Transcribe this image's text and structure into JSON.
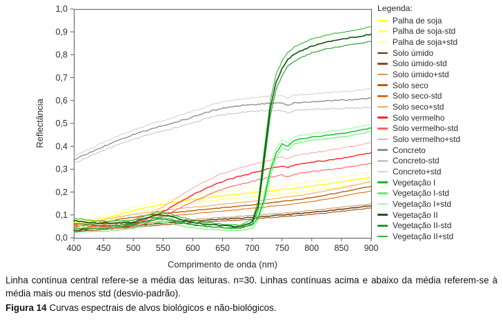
{
  "chart_data": {
    "type": "line",
    "title": "",
    "xlabel": "Comprimento de onda (nm)",
    "ylabel": "Reflectância",
    "legend_title": "Legenda:",
    "legend_position": "right",
    "grid": false,
    "xlim": [
      400,
      900
    ],
    "ylim": [
      0,
      1
    ],
    "x_ticks": [
      400,
      450,
      500,
      550,
      600,
      650,
      700,
      750,
      800,
      850,
      900
    ],
    "y_tick_labels": [
      "0,0",
      "0,1",
      "0,2",
      "0,3",
      "0,4",
      "0,5",
      "0,6",
      "0,7",
      "0,8",
      "0,9",
      "1,0"
    ],
    "axis_color": "#595959",
    "x": [
      400,
      420,
      440,
      460,
      480,
      500,
      520,
      540,
      560,
      580,
      600,
      620,
      640,
      660,
      680,
      700,
      710,
      720,
      730,
      740,
      750,
      760,
      770,
      780,
      800,
      820,
      840,
      860,
      880,
      900
    ],
    "groups": [
      {
        "id": "palha-de-soja",
        "name": "Palha de soja",
        "legend_labels": [
          "Palha de soja",
          "Palha de soja-std",
          "Palha de soja+std"
        ],
        "color_mean": "#ffff00",
        "color_minus": "#ffff70",
        "color_plus": "#ffffa8",
        "mean": [
          0.065,
          0.071,
          0.079,
          0.09,
          0.104,
          0.119,
          0.132,
          0.142,
          0.151,
          0.159,
          0.167,
          0.174,
          0.181,
          0.187,
          0.192,
          0.197,
          0.2,
          0.203,
          0.205,
          0.208,
          0.211,
          0.213,
          0.216,
          0.219,
          0.226,
          0.233,
          0.241,
          0.249,
          0.257,
          0.265
        ],
        "std": [
          0.012,
          0.012,
          0.013,
          0.013,
          0.014,
          0.014,
          0.015,
          0.015,
          0.015,
          0.016,
          0.016,
          0.016,
          0.017,
          0.017,
          0.017,
          0.018,
          0.018,
          0.018,
          0.018,
          0.019,
          0.019,
          0.019,
          0.019,
          0.02,
          0.02,
          0.02,
          0.021,
          0.021,
          0.022,
          0.022
        ]
      },
      {
        "id": "solo-umido",
        "name": "Solo úmido",
        "legend_labels": [
          "Solo úmido",
          "Solo úmido-std",
          "Solo úmido+std"
        ],
        "color_mean": "#5e2c04",
        "color_minus": "#974706",
        "color_plus": "#c89b64",
        "mean": [
          0.032,
          0.036,
          0.04,
          0.044,
          0.049,
          0.053,
          0.058,
          0.062,
          0.066,
          0.07,
          0.073,
          0.077,
          0.08,
          0.083,
          0.086,
          0.09,
          0.092,
          0.094,
          0.096,
          0.098,
          0.1,
          0.102,
          0.104,
          0.106,
          0.111,
          0.116,
          0.122,
          0.128,
          0.134,
          0.14
        ],
        "std": [
          0.006,
          0.006,
          0.006,
          0.006,
          0.007,
          0.007,
          0.007,
          0.007,
          0.007,
          0.007,
          0.007,
          0.007,
          0.008,
          0.008,
          0.008,
          0.008,
          0.008,
          0.008,
          0.008,
          0.008,
          0.008,
          0.008,
          0.008,
          0.008,
          0.009,
          0.009,
          0.009,
          0.009,
          0.009,
          0.009
        ]
      },
      {
        "id": "solo-seco",
        "name": "Solo seco",
        "legend_labels": [
          "Solo seco",
          "Solo seco-std",
          "Solo seco+std"
        ],
        "color_mean": "#b45f06",
        "color_minus": "#e36c09",
        "color_plus": "#f9a65b",
        "mean": [
          0.048,
          0.055,
          0.063,
          0.072,
          0.082,
          0.09,
          0.097,
          0.103,
          0.109,
          0.114,
          0.119,
          0.124,
          0.129,
          0.134,
          0.139,
          0.144,
          0.147,
          0.15,
          0.153,
          0.156,
          0.159,
          0.162,
          0.165,
          0.168,
          0.176,
          0.185,
          0.195,
          0.205,
          0.215,
          0.225
        ],
        "std": [
          0.01,
          0.01,
          0.011,
          0.011,
          0.012,
          0.012,
          0.013,
          0.013,
          0.013,
          0.014,
          0.014,
          0.014,
          0.015,
          0.015,
          0.015,
          0.015,
          0.016,
          0.016,
          0.016,
          0.016,
          0.017,
          0.017,
          0.017,
          0.017,
          0.018,
          0.018,
          0.019,
          0.019,
          0.02,
          0.02
        ]
      },
      {
        "id": "solo-vermelho",
        "name": "Solo vermelho",
        "legend_labels": [
          "Solo vermelho",
          "Solo vermelho-std",
          "Solo vermelho+std"
        ],
        "color_mean": "#ff1f1f",
        "color_minus": "#ff6060",
        "color_plus": "#ffa8a8",
        "mean": [
          0.055,
          0.052,
          0.051,
          0.052,
          0.056,
          0.064,
          0.078,
          0.1,
          0.128,
          0.158,
          0.188,
          0.214,
          0.237,
          0.255,
          0.27,
          0.284,
          0.291,
          0.297,
          0.303,
          0.309,
          0.314,
          0.306,
          0.318,
          0.322,
          0.33,
          0.337,
          0.344,
          0.352,
          0.362,
          0.372
        ],
        "std": [
          0.01,
          0.01,
          0.01,
          0.011,
          0.012,
          0.013,
          0.016,
          0.019,
          0.023,
          0.027,
          0.03,
          0.032,
          0.034,
          0.035,
          0.036,
          0.037,
          0.037,
          0.038,
          0.038,
          0.039,
          0.039,
          0.039,
          0.04,
          0.04,
          0.041,
          0.042,
          0.043,
          0.044,
          0.045,
          0.046
        ]
      },
      {
        "id": "concreto",
        "name": "Concreto",
        "legend_labels": [
          "Concreto",
          "Concreto-std",
          "Concreto+std"
        ],
        "color_mean": "#8f8f8f",
        "color_minus": "#c6c6c6",
        "color_plus": "#d3d3d3",
        "mean": [
          0.34,
          0.364,
          0.388,
          0.41,
          0.431,
          0.45,
          0.467,
          0.483,
          0.497,
          0.512,
          0.528,
          0.545,
          0.56,
          0.57,
          0.577,
          0.582,
          0.584,
          0.586,
          0.587,
          0.588,
          0.589,
          0.576,
          0.591,
          0.592,
          0.595,
          0.598,
          0.601,
          0.603,
          0.606,
          0.61
        ],
        "std": [
          0.015,
          0.016,
          0.017,
          0.018,
          0.019,
          0.02,
          0.021,
          0.022,
          0.023,
          0.024,
          0.025,
          0.026,
          0.027,
          0.028,
          0.029,
          0.03,
          0.03,
          0.031,
          0.031,
          0.032,
          0.032,
          0.032,
          0.033,
          0.033,
          0.034,
          0.035,
          0.036,
          0.037,
          0.038,
          0.04
        ]
      },
      {
        "id": "vegetacao-1",
        "name": "Vegetação I",
        "legend_labels": [
          "Vegetação I",
          "Vegetação I-std",
          "Vegetação I+std"
        ],
        "color_mean": "#00bd22",
        "color_minus": "#66ef66",
        "color_plus": "#a4f7a4",
        "mean": [
          0.038,
          0.039,
          0.041,
          0.044,
          0.049,
          0.056,
          0.07,
          0.082,
          0.079,
          0.066,
          0.056,
          0.05,
          0.046,
          0.043,
          0.044,
          0.055,
          0.09,
          0.17,
          0.29,
          0.37,
          0.41,
          0.4,
          0.425,
          0.432,
          0.44,
          0.447,
          0.453,
          0.46,
          0.47,
          0.48
        ],
        "std": [
          0.013,
          0.013,
          0.013,
          0.013,
          0.014,
          0.014,
          0.015,
          0.015,
          0.014,
          0.013,
          0.012,
          0.012,
          0.011,
          0.011,
          0.011,
          0.012,
          0.015,
          0.02,
          0.022,
          0.02,
          0.018,
          0.017,
          0.016,
          0.016,
          0.015,
          0.015,
          0.015,
          0.015,
          0.015,
          0.016
        ]
      },
      {
        "id": "vegetacao-2",
        "name": "Vegetação II",
        "legend_labels": [
          "Vegetação II",
          "Vegetação II-std",
          "Vegetação II+std"
        ],
        "color_mean": "#135b13",
        "color_minus": "#1f9a1f",
        "color_plus": "#29b329",
        "mean": [
          0.075,
          0.068,
          0.064,
          0.063,
          0.065,
          0.068,
          0.085,
          0.1,
          0.097,
          0.08,
          0.068,
          0.06,
          0.055,
          0.051,
          0.049,
          0.07,
          0.14,
          0.35,
          0.56,
          0.68,
          0.74,
          0.78,
          0.8,
          0.815,
          0.838,
          0.852,
          0.863,
          0.872,
          0.88,
          0.89
        ],
        "std": [
          0.012,
          0.01,
          0.009,
          0.009,
          0.009,
          0.01,
          0.012,
          0.013,
          0.012,
          0.01,
          0.009,
          0.008,
          0.008,
          0.007,
          0.007,
          0.01,
          0.02,
          0.03,
          0.033,
          0.033,
          0.032,
          0.031,
          0.031,
          0.03,
          0.03,
          0.03,
          0.03,
          0.03,
          0.031,
          0.032
        ]
      }
    ]
  },
  "caption": {
    "note": "Linha contínua central refere-se a média das leituras. n=30. Linhas contínuas acima e abaixo da média referem-se à média mais ou menos std (desvio-padrão).",
    "figure_label": "Figura 14",
    "figure_text": "Curvas espectrais de alvos biológicos e não-biológicos."
  }
}
